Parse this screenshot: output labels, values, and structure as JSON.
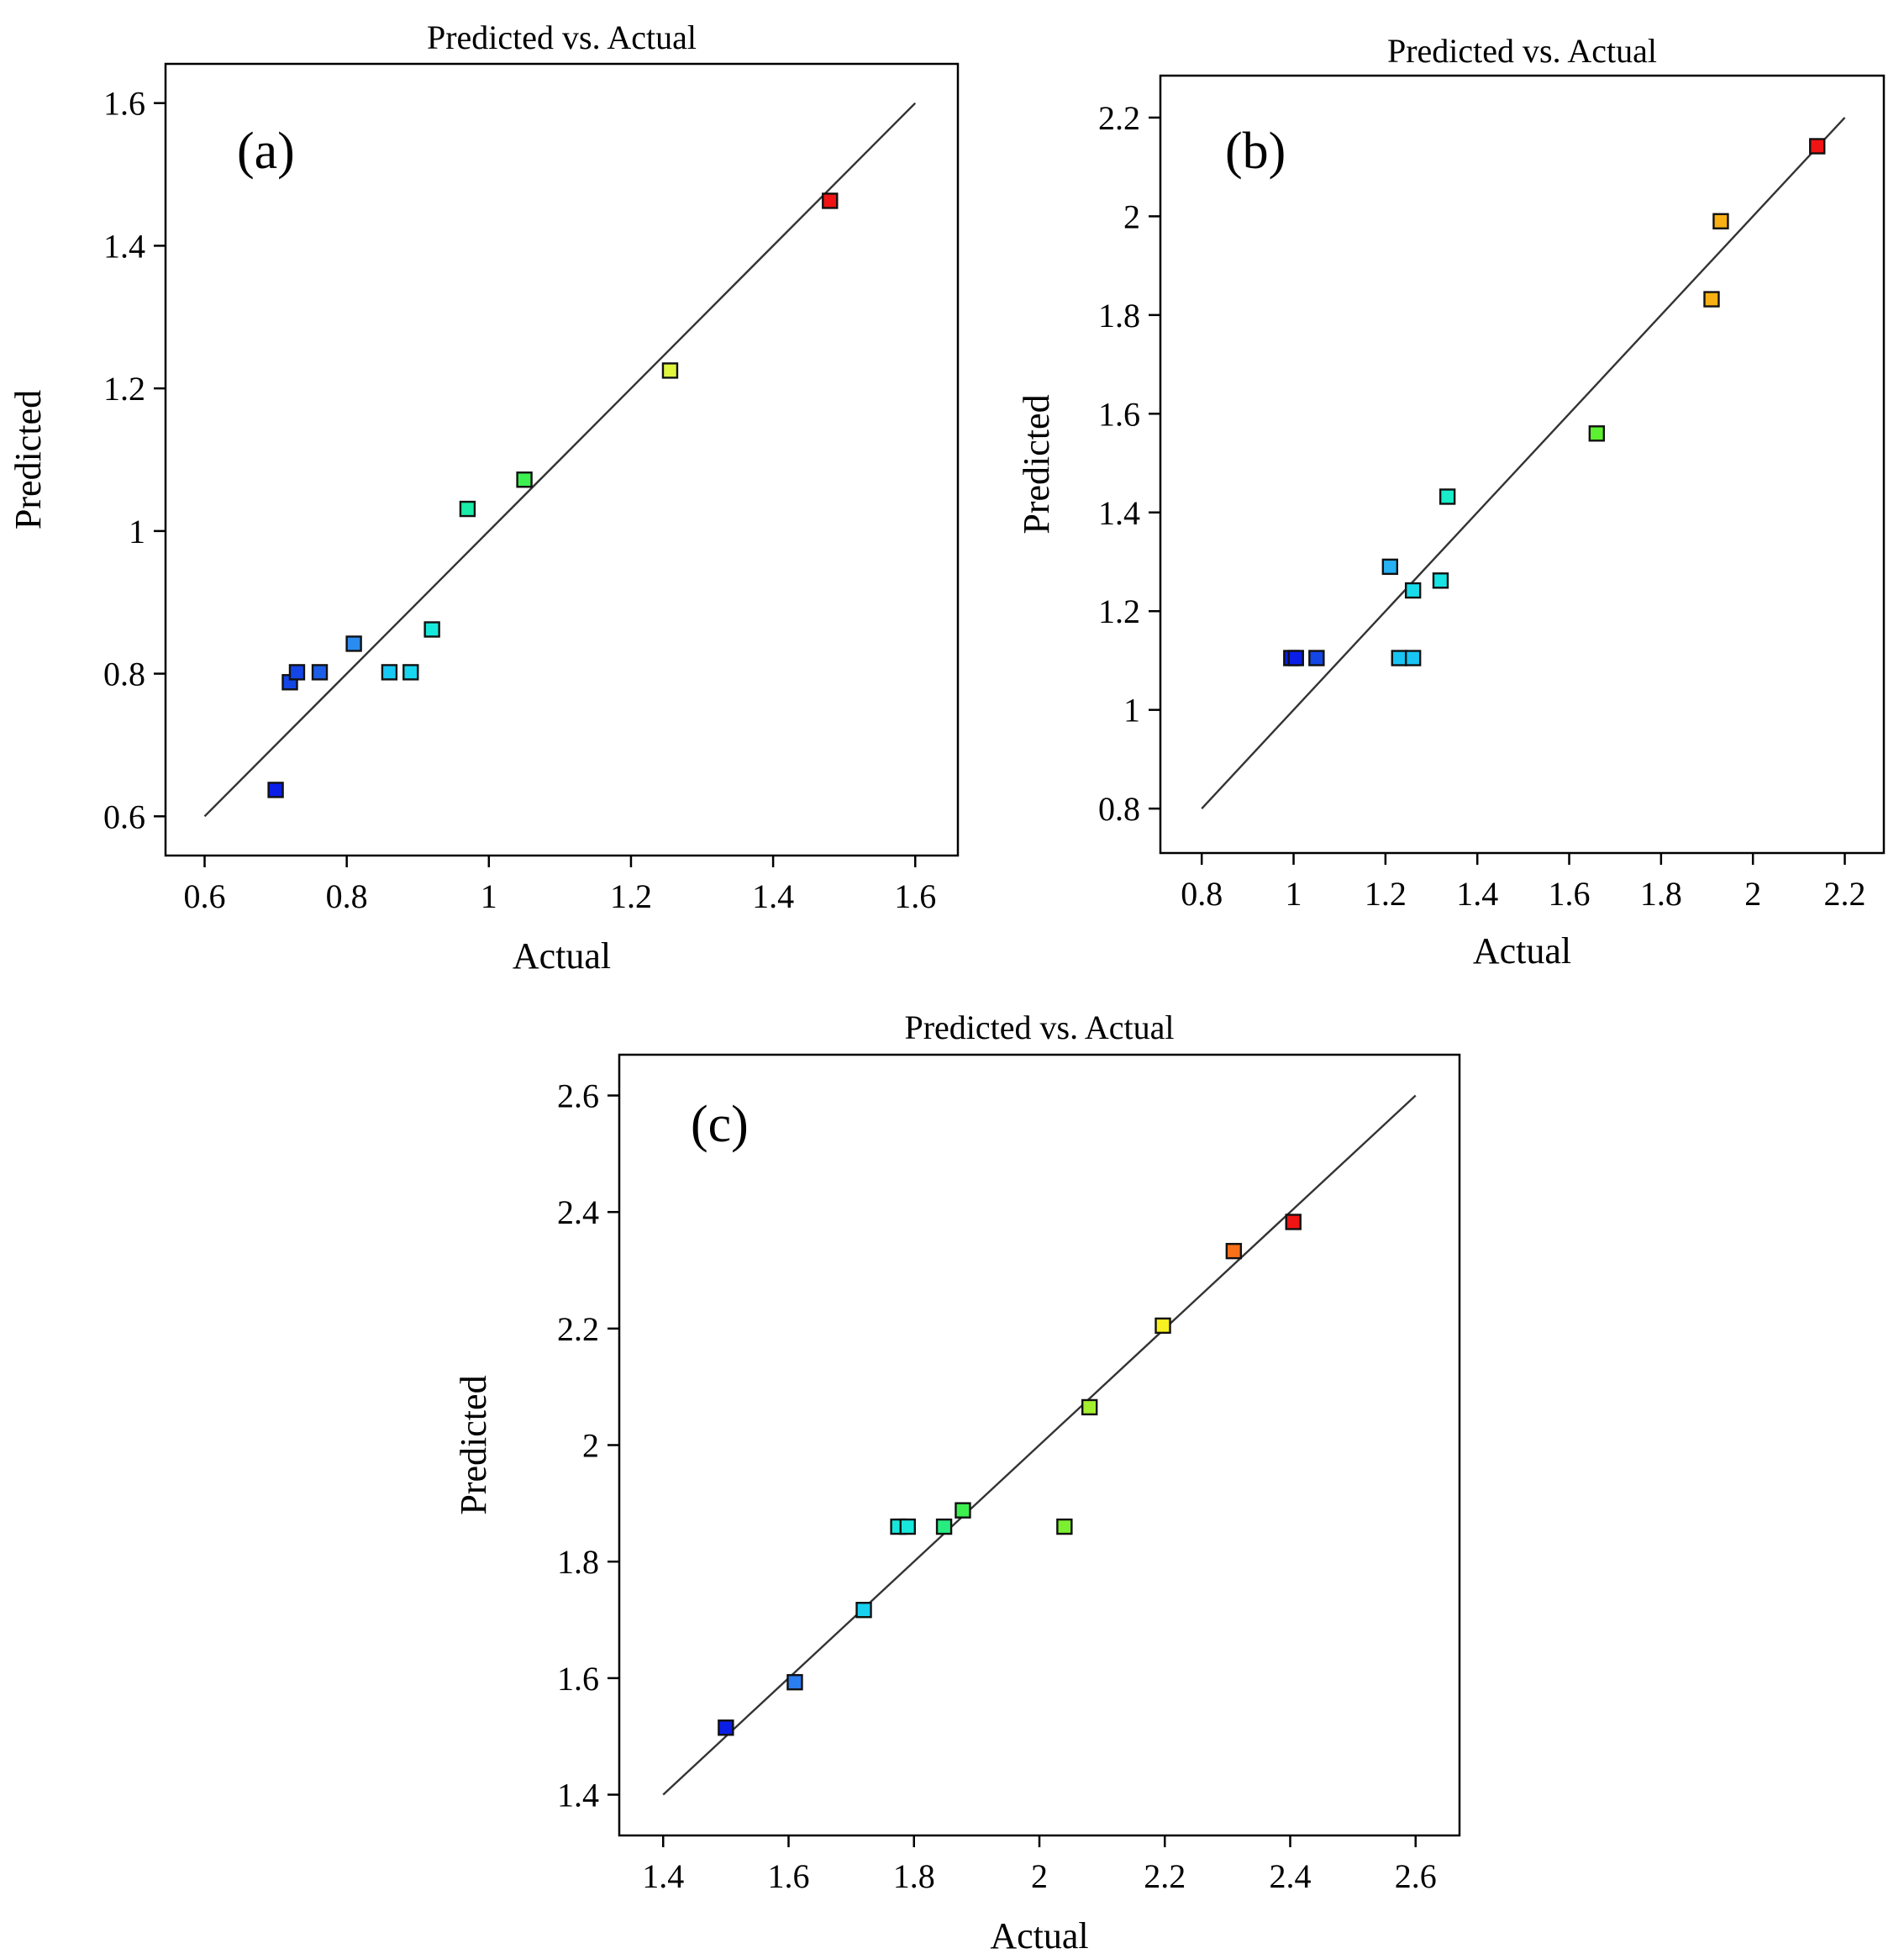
{
  "chart_data": [
    {
      "type": "scatter",
      "panel_label": "(a)",
      "title": "Predicted vs. Actual",
      "xlabel": "Actual",
      "ylabel": "Predicted",
      "xlim": [
        0.545,
        1.66
      ],
      "ylim": [
        0.545,
        1.655
      ],
      "xticks": [
        0.6,
        0.8,
        1,
        1.2,
        1.4,
        1.6
      ],
      "xtick_labels": [
        "0.6",
        "0.8",
        "1",
        "1.2",
        "1.4",
        "1.6"
      ],
      "yticks": [
        0.6,
        0.8,
        1,
        1.2,
        1.4,
        1.6
      ],
      "ytick_labels": [
        "0.6",
        "0.8",
        "1",
        "1.2",
        "1.4",
        "1.6"
      ],
      "reference_line": [
        [
          0.6,
          0.6
        ],
        [
          1.6,
          1.6
        ]
      ],
      "grid": false,
      "points": [
        {
          "x": 0.7,
          "y": 0.637,
          "color": "#0a1ee8"
        },
        {
          "x": 0.72,
          "y": 0.788,
          "color": "#1446e6"
        },
        {
          "x": 0.73,
          "y": 0.802,
          "color": "#1446e6"
        },
        {
          "x": 0.762,
          "y": 0.802,
          "color": "#1c5ee8"
        },
        {
          "x": 0.81,
          "y": 0.842,
          "color": "#2a8cf0"
        },
        {
          "x": 0.86,
          "y": 0.802,
          "color": "#18c8f4"
        },
        {
          "x": 0.89,
          "y": 0.802,
          "color": "#18d6f0"
        },
        {
          "x": 0.92,
          "y": 0.862,
          "color": "#18e8dc"
        },
        {
          "x": 0.97,
          "y": 1.031,
          "color": "#18eca8"
        },
        {
          "x": 1.05,
          "y": 1.072,
          "color": "#3cf050"
        },
        {
          "x": 1.255,
          "y": 1.225,
          "color": "#e0f440"
        },
        {
          "x": 1.48,
          "y": 1.463,
          "color": "#f01414"
        }
      ]
    },
    {
      "type": "scatter",
      "panel_label": "(b)",
      "title": "Predicted vs. Actual",
      "xlabel": "Actual",
      "ylabel": "Predicted",
      "xlim": [
        0.71,
        2.285
      ],
      "ylim": [
        0.71,
        2.285
      ],
      "xticks": [
        0.8,
        1,
        1.2,
        1.4,
        1.6,
        1.8,
        2,
        2.2
      ],
      "xtick_labels": [
        "0.8",
        "1",
        "1.2",
        "1.4",
        "1.6",
        "1.8",
        "2",
        "2.2"
      ],
      "yticks": [
        0.8,
        1,
        1.2,
        1.4,
        1.6,
        1.8,
        2,
        2.2
      ],
      "ytick_labels": [
        "0.8",
        "1",
        "1.2",
        "1.4",
        "1.6",
        "1.8",
        "2",
        "2.2"
      ],
      "reference_line": [
        [
          0.8,
          0.8
        ],
        [
          2.2,
          2.2
        ]
      ],
      "grid": false,
      "points": [
        {
          "x": 0.995,
          "y": 1.105,
          "color": "#0a1ee8"
        },
        {
          "x": 1.005,
          "y": 1.105,
          "color": "#0a1ee8"
        },
        {
          "x": 1.05,
          "y": 1.105,
          "color": "#1446e6"
        },
        {
          "x": 1.21,
          "y": 1.29,
          "color": "#28b0f4"
        },
        {
          "x": 1.23,
          "y": 1.105,
          "color": "#18c4f4"
        },
        {
          "x": 1.26,
          "y": 1.105,
          "color": "#18c4f4"
        },
        {
          "x": 1.26,
          "y": 1.242,
          "color": "#18dcec"
        },
        {
          "x": 1.32,
          "y": 1.262,
          "color": "#18e4e4"
        },
        {
          "x": 1.335,
          "y": 1.432,
          "color": "#18ecc8"
        },
        {
          "x": 1.66,
          "y": 1.56,
          "color": "#5cf030"
        },
        {
          "x": 1.91,
          "y": 1.832,
          "color": "#f8b014"
        },
        {
          "x": 1.93,
          "y": 1.99,
          "color": "#f8b014"
        },
        {
          "x": 2.14,
          "y": 2.142,
          "color": "#f01414"
        }
      ]
    },
    {
      "type": "scatter",
      "panel_label": "(c)",
      "title": "Predicted vs. Actual",
      "xlabel": "Actual",
      "ylabel": "Predicted",
      "xlim": [
        1.33,
        2.67
      ],
      "ylim": [
        1.33,
        2.67
      ],
      "xticks": [
        1.4,
        1.6,
        1.8,
        2,
        2.2,
        2.4,
        2.6
      ],
      "xtick_labels": [
        "1.4",
        "1.6",
        "1.8",
        "2",
        "2.2",
        "2.4",
        "2.6"
      ],
      "yticks": [
        1.4,
        1.6,
        1.8,
        2,
        2.2,
        2.4,
        2.6
      ],
      "ytick_labels": [
        "1.4",
        "1.6",
        "1.8",
        "2",
        "2.2",
        "2.4",
        "2.6"
      ],
      "reference_line": [
        [
          1.4,
          1.4
        ],
        [
          2.6,
          2.6
        ]
      ],
      "grid": false,
      "points": [
        {
          "x": 1.5,
          "y": 1.515,
          "color": "#0a1ee8"
        },
        {
          "x": 1.61,
          "y": 1.593,
          "color": "#2a7ef0"
        },
        {
          "x": 1.72,
          "y": 1.717,
          "color": "#18d0f0"
        },
        {
          "x": 1.775,
          "y": 1.86,
          "color": "#18e8dc"
        },
        {
          "x": 1.79,
          "y": 1.86,
          "color": "#18e8dc"
        },
        {
          "x": 1.848,
          "y": 1.86,
          "color": "#28ec80"
        },
        {
          "x": 1.878,
          "y": 1.888,
          "color": "#3cf050"
        },
        {
          "x": 2.04,
          "y": 1.86,
          "color": "#7cf030"
        },
        {
          "x": 2.08,
          "y": 2.065,
          "color": "#a4f030"
        },
        {
          "x": 2.197,
          "y": 2.205,
          "color": "#f8f020"
        },
        {
          "x": 2.31,
          "y": 2.333,
          "color": "#f87018"
        },
        {
          "x": 2.405,
          "y": 2.383,
          "color": "#f01414"
        }
      ]
    }
  ]
}
